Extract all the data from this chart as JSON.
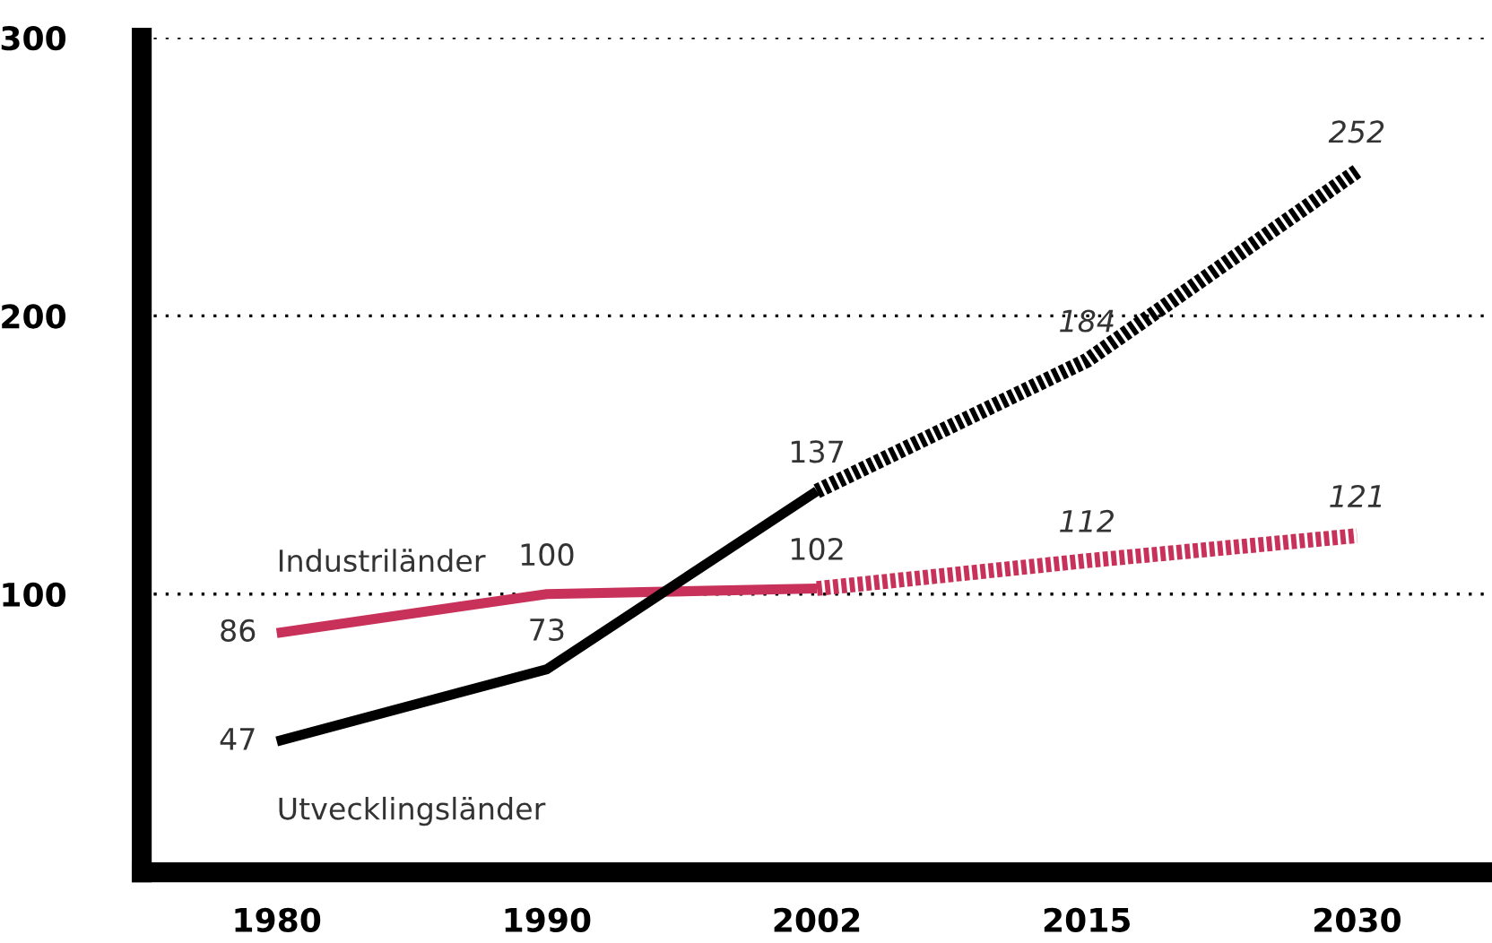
{
  "chart_data": {
    "type": "line",
    "categories": [
      "1980",
      "1990",
      "2002",
      "2015",
      "2030"
    ],
    "series": [
      {
        "name": "Industriländer",
        "color": "#c8325a",
        "values": [
          86,
          100,
          102,
          null,
          null
        ],
        "value_labels": [
          "86",
          "100",
          "102",
          null,
          null
        ],
        "line_style": "solid"
      },
      {
        "color": "#c8325a",
        "values": [
          null,
          null,
          102,
          112,
          121
        ],
        "value_labels": [
          null,
          null,
          null,
          "112",
          "121"
        ],
        "line_style": "dotted"
      },
      {
        "name": "Utvecklingsländer",
        "color": "#000000",
        "values": [
          47,
          73,
          137,
          null,
          null
        ],
        "value_labels": [
          "47",
          "73",
          "137",
          null,
          null
        ],
        "line_style": "solid"
      },
      {
        "color": "#000000",
        "values": [
          null,
          null,
          137,
          184,
          252
        ],
        "value_labels": [
          null,
          null,
          null,
          "184",
          "252"
        ],
        "line_style": "dotted"
      }
    ],
    "ylim": [
      0,
      300
    ],
    "yticks": [
      100,
      200,
      300
    ],
    "grid": "y",
    "legend": false,
    "marker": "none"
  }
}
